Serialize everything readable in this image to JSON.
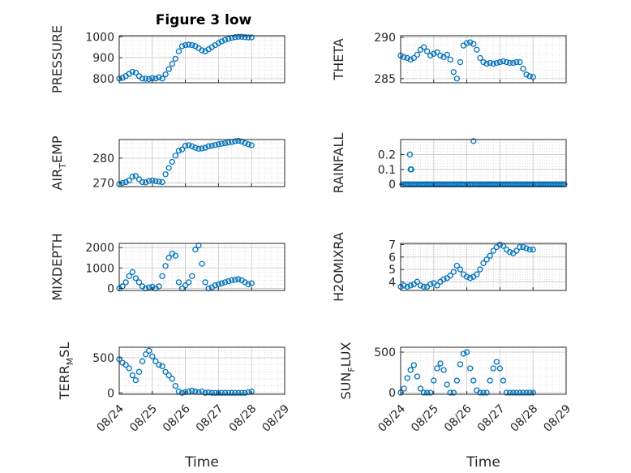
{
  "figure_title": "Figure 3 low",
  "chart_data": [
    {
      "type": "scatter",
      "name": "PRESSURE",
      "ylabel": "PRESSURE",
      "ylim": [
        780,
        1005
      ],
      "yticks": [
        "800",
        "900",
        "1000"
      ],
      "ytick_values": [
        800,
        900,
        1000
      ],
      "marker_color": "#0072BD",
      "x": [
        0,
        0.1,
        0.2,
        0.3,
        0.4,
        0.5,
        0.6,
        0.7,
        0.8,
        0.9,
        1.0,
        1.1,
        1.2,
        1.3,
        1.4,
        1.5,
        1.6,
        1.7,
        1.8,
        1.9,
        2.0,
        2.1,
        2.2,
        2.3,
        2.4,
        2.5,
        2.6,
        2.7,
        2.8,
        2.9,
        3.0,
        3.1,
        3.2,
        3.3,
        3.4,
        3.5,
        3.6,
        3.7,
        3.8,
        3.9,
        4.0
      ],
      "y": [
        800,
        803,
        812,
        822,
        832,
        828,
        812,
        800,
        799,
        798,
        802,
        800,
        806,
        800,
        820,
        845,
        870,
        895,
        930,
        955,
        960,
        962,
        960,
        955,
        945,
        935,
        930,
        940,
        950,
        960,
        970,
        978,
        985,
        990,
        995,
        998,
        1000,
        1000,
        998,
        997,
        997
      ]
    },
    {
      "type": "scatter",
      "name": "THETA",
      "ylabel": "THETA",
      "ylim": [
        284.5,
        290.2
      ],
      "yticks": [
        "285",
        "290"
      ],
      "ytick_values": [
        285,
        290
      ],
      "marker_color": "#0072BD",
      "x": [
        0,
        0.1,
        0.2,
        0.3,
        0.4,
        0.5,
        0.6,
        0.7,
        0.8,
        0.9,
        1.0,
        1.1,
        1.2,
        1.3,
        1.4,
        1.5,
        1.6,
        1.7,
        1.8,
        1.9,
        2.0,
        2.1,
        2.2,
        2.3,
        2.4,
        2.5,
        2.6,
        2.7,
        2.8,
        2.9,
        3.0,
        3.1,
        3.2,
        3.3,
        3.4,
        3.5,
        3.6,
        3.7,
        3.8,
        3.9,
        4.0
      ],
      "y": [
        287.8,
        287.6,
        287.5,
        287.3,
        287.5,
        287.9,
        288.5,
        288.8,
        288.3,
        287.8,
        288.0,
        288.2,
        287.8,
        287.6,
        287.9,
        287.3,
        285.8,
        285.0,
        287.0,
        289.0,
        289.3,
        289.4,
        289.2,
        288.5,
        287.5,
        287.0,
        286.8,
        286.9,
        286.8,
        286.9,
        287.0,
        287.1,
        287.0,
        286.9,
        286.9,
        287.0,
        287.0,
        286.2,
        285.5,
        285.3,
        285.2
      ]
    },
    {
      "type": "scatter",
      "name": "AIR_TEMP",
      "ylabel": "AIR_TEMP",
      "ylim": [
        268.5,
        287.5
      ],
      "yticks": [
        "270",
        "280"
      ],
      "ytick_values": [
        270,
        280
      ],
      "marker_color": "#0072BD",
      "x": [
        0,
        0.1,
        0.2,
        0.3,
        0.4,
        0.5,
        0.6,
        0.7,
        0.8,
        0.9,
        1.0,
        1.1,
        1.2,
        1.3,
        1.4,
        1.5,
        1.6,
        1.7,
        1.8,
        1.9,
        2.0,
        2.1,
        2.2,
        2.3,
        2.4,
        2.5,
        2.6,
        2.7,
        2.8,
        2.9,
        3.0,
        3.1,
        3.2,
        3.3,
        3.4,
        3.5,
        3.6,
        3.7,
        3.8,
        3.9,
        4.0
      ],
      "y": [
        269.5,
        270.0,
        270.3,
        271.0,
        272.5,
        272.8,
        271.5,
        270.3,
        270.2,
        270.8,
        271.0,
        270.7,
        270.5,
        270.3,
        273.5,
        276.0,
        278.5,
        281.0,
        283.0,
        283.5,
        285.0,
        285.2,
        284.8,
        284.2,
        283.8,
        283.9,
        284.2,
        284.8,
        285.0,
        285.3,
        285.6,
        285.8,
        286.0,
        286.3,
        286.5,
        286.8,
        287.0,
        286.7,
        286.1,
        285.6,
        285.2
      ]
    },
    {
      "type": "scatter",
      "name": "RAINFALL",
      "ylabel": "RAINFALL",
      "ylim": [
        -0.015,
        0.3
      ],
      "yticks": [
        "0",
        "0.1",
        "0.2"
      ],
      "ytick_values": [
        0,
        0.1,
        0.2
      ],
      "marker_color": "#0072BD",
      "x": [
        0.05,
        0.1,
        0.15,
        0.2,
        0.25,
        0.3,
        0.35,
        0.4,
        0.45,
        0.5,
        0.55,
        0.6,
        0.65,
        0.7,
        0.75,
        0.8,
        0.85,
        0.9,
        0.95,
        1.0,
        1.05,
        1.1,
        1.15,
        1.2,
        1.25,
        1.3,
        1.35,
        1.4,
        1.45,
        1.5,
        1.55,
        1.6,
        1.65,
        1.7,
        1.75,
        1.8,
        1.85,
        1.9,
        1.95,
        2.0,
        2.05,
        2.1,
        2.15,
        2.2,
        2.25,
        2.3,
        2.35,
        2.4,
        2.45,
        2.5,
        2.55,
        2.6,
        2.65,
        2.7,
        2.75,
        2.8,
        2.85,
        2.9,
        2.95,
        3.0,
        3.05,
        3.1,
        3.15,
        3.2,
        3.25,
        3.3,
        3.35,
        3.4,
        3.45,
        3.5,
        3.55,
        3.6,
        3.65,
        3.7,
        3.75,
        3.8,
        3.85,
        3.9,
        3.95,
        4.0,
        4.05,
        4.1,
        4.15,
        4.2,
        4.25,
        4.3,
        4.35,
        4.4,
        4.45,
        4.5,
        4.55,
        4.6,
        4.65,
        4.7,
        4.75,
        4.8,
        4.85,
        4.9,
        4.95,
        0.28,
        0.3,
        0.32,
        2.2
      ],
      "y": [
        0,
        0,
        0,
        0,
        0,
        0,
        0,
        0,
        0,
        0,
        0,
        0,
        0,
        0,
        0,
        0,
        0,
        0,
        0,
        0,
        0,
        0,
        0,
        0,
        0,
        0,
        0,
        0,
        0,
        0,
        0,
        0,
        0,
        0,
        0,
        0,
        0,
        0,
        0,
        0,
        0,
        0,
        0,
        0,
        0,
        0,
        0,
        0,
        0,
        0,
        0,
        0,
        0,
        0,
        0,
        0,
        0,
        0,
        0,
        0,
        0,
        0,
        0,
        0,
        0,
        0,
        0,
        0,
        0,
        0,
        0,
        0,
        0,
        0,
        0,
        0,
        0,
        0,
        0,
        0,
        0,
        0,
        0,
        0,
        0,
        0,
        0,
        0,
        0,
        0,
        0,
        0,
        0,
        0,
        0,
        0,
        0,
        0,
        0,
        0.2,
        0.1,
        0.1,
        0.29
      ]
    },
    {
      "type": "scatter",
      "name": "MIXDEPTH",
      "ylabel": "MIXDEPTH",
      "ylim": [
        -100,
        2200
      ],
      "yticks": [
        "0",
        "1000",
        "2000"
      ],
      "ytick_values": [
        0,
        1000,
        2000
      ],
      "marker_color": "#0072BD",
      "x": [
        0,
        0.1,
        0.2,
        0.3,
        0.4,
        0.5,
        0.6,
        0.7,
        0.8,
        0.9,
        1.0,
        1.1,
        1.2,
        1.3,
        1.4,
        1.5,
        1.6,
        1.7,
        1.8,
        1.9,
        2.0,
        2.1,
        2.2,
        2.3,
        2.4,
        2.5,
        2.6,
        2.7,
        2.8,
        2.9,
        3.0,
        3.1,
        3.2,
        3.3,
        3.4,
        3.5,
        3.6,
        3.7,
        3.8,
        3.9,
        4.0
      ],
      "y": [
        0,
        100,
        300,
        600,
        800,
        500,
        300,
        100,
        0,
        50,
        80,
        0,
        100,
        600,
        1100,
        1500,
        1700,
        1600,
        300,
        0,
        150,
        300,
        600,
        1900,
        2100,
        1200,
        300,
        0,
        50,
        150,
        200,
        250,
        300,
        350,
        400,
        420,
        450,
        400,
        300,
        200,
        250
      ]
    },
    {
      "type": "scatter",
      "name": "H2OMIXRA",
      "ylabel": "H2OMIXRA",
      "ylim": [
        3.3,
        7.1
      ],
      "yticks": [
        "4",
        "5",
        "6",
        "7"
      ],
      "ytick_values": [
        4,
        5,
        6,
        7
      ],
      "marker_color": "#0072BD",
      "x": [
        0,
        0.1,
        0.2,
        0.3,
        0.4,
        0.5,
        0.6,
        0.7,
        0.8,
        0.9,
        1.0,
        1.1,
        1.2,
        1.3,
        1.4,
        1.5,
        1.6,
        1.7,
        1.8,
        1.9,
        2.0,
        2.1,
        2.2,
        2.3,
        2.4,
        2.5,
        2.6,
        2.7,
        2.8,
        2.9,
        3.0,
        3.1,
        3.2,
        3.3,
        3.4,
        3.5,
        3.6,
        3.7,
        3.8,
        3.9,
        4.0
      ],
      "y": [
        3.6,
        3.7,
        3.6,
        3.7,
        3.8,
        4.0,
        3.7,
        3.6,
        3.6,
        3.8,
        3.9,
        3.7,
        4.0,
        4.2,
        4.3,
        4.5,
        4.8,
        5.3,
        5.0,
        4.6,
        4.4,
        4.3,
        4.4,
        4.6,
        5.0,
        5.5,
        5.8,
        6.1,
        6.5,
        6.8,
        7.0,
        6.9,
        6.6,
        6.4,
        6.3,
        6.5,
        6.8,
        6.8,
        6.7,
        6.6,
        6.6
      ]
    },
    {
      "type": "scatter",
      "name": "TERR_MSL",
      "ylabel": "TERR_MSL",
      "ylim": [
        -20,
        650
      ],
      "yticks": [
        "0",
        "500"
      ],
      "ytick_values": [
        0,
        500
      ],
      "marker_color": "#0072BD",
      "x": [
        0,
        0.1,
        0.2,
        0.3,
        0.4,
        0.5,
        0.6,
        0.7,
        0.8,
        0.9,
        1.0,
        1.1,
        1.2,
        1.3,
        1.4,
        1.5,
        1.6,
        1.7,
        1.8,
        1.9,
        2.0,
        2.1,
        2.2,
        2.3,
        2.4,
        2.5,
        2.6,
        2.7,
        2.8,
        2.9,
        3.0,
        3.1,
        3.2,
        3.3,
        3.4,
        3.5,
        3.6,
        3.7,
        3.8,
        3.9,
        4.0
      ],
      "y": [
        480,
        430,
        400,
        350,
        250,
        180,
        300,
        450,
        550,
        600,
        520,
        450,
        400,
        380,
        300,
        250,
        200,
        100,
        20,
        0,
        10,
        20,
        30,
        20,
        10,
        20,
        0,
        5,
        0,
        0,
        0,
        0,
        0,
        0,
        0,
        0,
        0,
        0,
        0,
        10,
        20
      ]
    },
    {
      "type": "scatter",
      "name": "SUN_FLUX",
      "ylabel": "SUN_FLUX",
      "ylim": [
        -20,
        560
      ],
      "yticks": [
        "0",
        "500"
      ],
      "ytick_values": [
        0,
        500
      ],
      "marker_color": "#0072BD",
      "x": [
        0,
        0.1,
        0.2,
        0.3,
        0.4,
        0.5,
        0.6,
        0.7,
        0.8,
        0.9,
        1.0,
        1.1,
        1.2,
        1.3,
        1.4,
        1.5,
        1.6,
        1.7,
        1.8,
        1.9,
        2.0,
        2.1,
        2.2,
        2.3,
        2.4,
        2.5,
        2.6,
        2.7,
        2.8,
        2.9,
        3.0,
        3.1,
        3.2,
        3.3,
        3.4,
        3.5,
        3.6,
        3.7,
        3.8,
        3.9,
        4.0
      ],
      "y": [
        0,
        50,
        180,
        280,
        340,
        200,
        50,
        0,
        0,
        0,
        150,
        300,
        360,
        280,
        100,
        0,
        0,
        150,
        350,
        480,
        500,
        300,
        150,
        30,
        0,
        0,
        0,
        150,
        300,
        380,
        300,
        150,
        0,
        0,
        0,
        0,
        0,
        0,
        0,
        0,
        0
      ]
    }
  ],
  "xticks": [
    "08/24",
    "08/25",
    "08/26",
    "08/27",
    "08/28",
    "08/29"
  ],
  "xlabel": "Time"
}
